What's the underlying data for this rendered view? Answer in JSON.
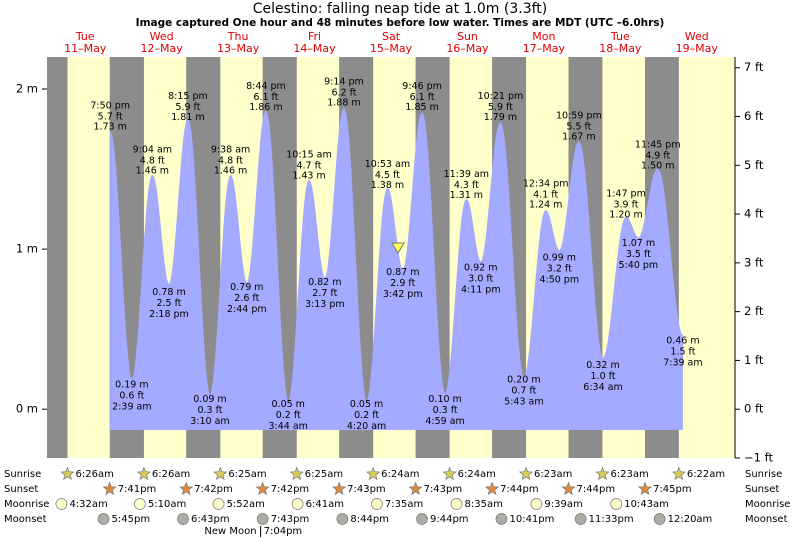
{
  "chart_data": {
    "type": "tide",
    "title": "Celestino: falling  neap tide at 1.0m (3.3ft)",
    "subtitle": "Image captured One hour and 48 minutes before low water. Times are MDT (UTC –6.0hrs)",
    "days": [
      {
        "weekday": "Tue",
        "date": "11–May",
        "sunrise": "6:26am",
        "sunset": "7:41pm",
        "moonrise": "4:32am",
        "moonset": "5:45pm"
      },
      {
        "weekday": "Wed",
        "date": "12–May",
        "sunrise": "6:26am",
        "sunset": "7:42pm",
        "moonrise": "5:10am",
        "moonset": "6:43pm"
      },
      {
        "weekday": "Thu",
        "date": "13–May",
        "sunrise": "6:25am",
        "sunset": "7:42pm",
        "moonrise": "5:52am",
        "moonset": "7:43pm",
        "phase": "New Moon",
        "phase_time": "7:04pm"
      },
      {
        "weekday": "Fri",
        "date": "14–May",
        "sunrise": "6:25am",
        "sunset": "7:43pm",
        "moonrise": "6:41am",
        "moonset": "8:44pm"
      },
      {
        "weekday": "Sat",
        "date": "15–May",
        "sunrise": "6:24am",
        "sunset": "7:43pm",
        "moonrise": "7:35am",
        "moonset": "9:44pm"
      },
      {
        "weekday": "Sun",
        "date": "16–May",
        "sunrise": "6:24am",
        "sunset": "7:44pm",
        "moonrise": "8:35am",
        "moonset": "10:41pm"
      },
      {
        "weekday": "Mon",
        "date": "17–May",
        "sunrise": "6:23am",
        "sunset": "7:44pm",
        "moonrise": "9:39am",
        "moonset": "11:33pm"
      },
      {
        "weekday": "Tue",
        "date": "18–May",
        "sunrise": "6:23am",
        "sunset": "7:45pm",
        "moonrise": "10:43am"
      },
      {
        "weekday": "Wed",
        "date": "19–May",
        "sunrise": "6:22am",
        "moonset": "12:20am"
      }
    ],
    "x": [
      "7:50 pm",
      "2:39 am",
      "9:04 am",
      "2:18 pm",
      "8:15 pm",
      "3:10 am",
      "9:38 am",
      "2:44 pm",
      "8:44 pm",
      "3:44 am",
      "10:15 am",
      "3:13 pm",
      "9:14 pm",
      "4:20 am",
      "10:53 am",
      "3:42 pm",
      "9:46 pm",
      "4:59 am",
      "11:39 am",
      "4:11 pm",
      "10:21 pm",
      "5:43 am",
      "12:34 pm",
      "4:50 pm",
      "10:59 pm",
      "6:34 am",
      "1:47 pm",
      "5:40 pm",
      "11:45 pm",
      "7:39 am"
    ],
    "values": [
      1.73,
      0.19,
      1.46,
      0.78,
      1.81,
      0.09,
      1.46,
      0.79,
      1.86,
      0.05,
      1.43,
      0.82,
      1.88,
      0.05,
      1.38,
      0.87,
      1.85,
      0.1,
      1.31,
      0.92,
      1.79,
      0.2,
      1.24,
      0.99,
      1.67,
      0.32,
      1.2,
      1.07,
      1.5,
      0.46
    ],
    "value_labels": [
      "1.73 m",
      "0.19 m",
      "1.46 m",
      "0.78 m",
      "1.81 m",
      "0.09 m",
      "1.46 m",
      "0.79 m",
      "1.86 m",
      "0.05 m",
      "1.43 m",
      "0.82 m",
      "1.88 m",
      "0.05 m",
      "1.38 m",
      "0.87 m",
      "1.85 m",
      "0.10 m",
      "1.31 m",
      "0.92 m",
      "1.79 m",
      "0.20 m",
      "1.24 m",
      "0.99 m",
      "1.67 m",
      "0.32 m",
      "1.20 m",
      "1.07 m",
      "1.50 m",
      "0.46 m"
    ],
    "values_ft": [
      5.7,
      0.6,
      4.8,
      2.5,
      5.9,
      0.3,
      4.8,
      2.6,
      6.1,
      0.2,
      4.7,
      2.7,
      6.2,
      0.2,
      4.5,
      2.9,
      6.1,
      0.3,
      4.3,
      3.0,
      5.9,
      0.7,
      4.1,
      3.2,
      5.5,
      1.0,
      3.9,
      3.5,
      4.9,
      1.5
    ],
    "value_labels_ft": [
      "5.7 ft",
      "0.6 ft",
      "4.8 ft",
      "2.5 ft",
      "5.9 ft",
      "0.3 ft",
      "4.8 ft",
      "2.6 ft",
      "6.1 ft",
      "0.2 ft",
      "4.7 ft",
      "2.7 ft",
      "6.2 ft",
      "0.2 ft",
      "4.5 ft",
      "2.9 ft",
      "6.1 ft",
      "0.3 ft",
      "4.3 ft",
      "3.0 ft",
      "5.9 ft",
      "0.7 ft",
      "4.1 ft",
      "3.2 ft",
      "5.5 ft",
      "1.0 ft",
      "3.9 ft",
      "3.5 ft",
      "4.9 ft",
      "1.5 ft"
    ],
    "ylim": [
      -0.305,
      2.2
    ],
    "yticks": [
      {
        "value": 0,
        "label": "0 m"
      },
      {
        "value": 1,
        "label": "1 m"
      },
      {
        "value": 2,
        "label": "2 m"
      }
    ],
    "y2lim": [
      -1.0,
      7.22
    ],
    "y2ticks": [
      {
        "value": -1,
        "label": "−1 ft"
      },
      {
        "value": 0,
        "label": "0 ft"
      },
      {
        "value": 1,
        "label": "1 ft"
      },
      {
        "value": 2,
        "label": "2 ft"
      },
      {
        "value": 3,
        "label": "3 ft"
      },
      {
        "value": 4,
        "label": "4 ft"
      },
      {
        "value": 5,
        "label": "5 ft"
      },
      {
        "value": 6,
        "label": "6 ft"
      },
      {
        "value": 7,
        "label": "7 ft"
      }
    ],
    "row_labels": [
      "Sunrise",
      "Sunset",
      "Moonrise",
      "Moonset"
    ],
    "color": "#a3aaff",
    "day_color": "#ffffcc",
    "night_color": "#8c8c8c"
  }
}
